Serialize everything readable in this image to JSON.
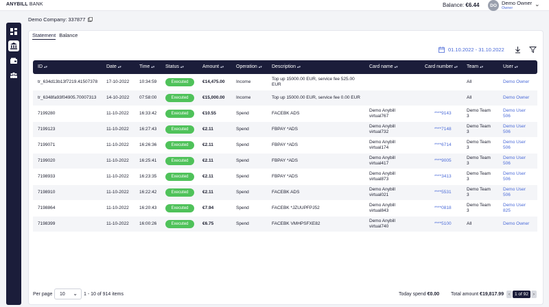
{
  "topbar": {
    "brand_bold": "ANYBILL",
    "brand_light": "BANK",
    "balance_label": "Balance:",
    "balance_value": "€6.44",
    "avatar_initials": "DO",
    "user_name": "Demo Owner",
    "user_role": "Owner"
  },
  "company": {
    "label": "Demo Company: 337877"
  },
  "tabs": [
    {
      "label": "Statement",
      "active": true
    },
    {
      "label": "Balance",
      "active": false
    }
  ],
  "filters": {
    "date_range": "01.10.2022 - 31.10.2022"
  },
  "table": {
    "columns": [
      "ID",
      "Date",
      "Time",
      "Status",
      "Amount",
      "Operation",
      "Description",
      "Card name",
      "Card number",
      "Team",
      "User"
    ],
    "rows": [
      {
        "id": "tr_634d13b13f7219.41507378",
        "date": "17-10-2022",
        "time": "10:34:59",
        "status": "Executed",
        "amount": "€14,475.00",
        "operation": "Income",
        "description": "Top up 15000.00 EUR, service fee 525.00 EUR",
        "card_name": "",
        "card_number": "",
        "team": "All",
        "user": "Demo Owner"
      },
      {
        "id": "tr_6348fa93f04905.70007313",
        "date": "14-10-2022",
        "time": "07:58:00",
        "status": "Executed",
        "amount": "€15,000.00",
        "operation": "Income",
        "description": "Top up 15000.00 EUR, service fee 0.00 EUR",
        "card_name": "",
        "card_number": "",
        "team": "All",
        "user": "Demo Owner"
      },
      {
        "id": "7199280",
        "date": "11-10-2022",
        "time": "16:33:42",
        "status": "Executed",
        "amount": "€10.55",
        "operation": "Spend",
        "description": "FACEBK ADS",
        "card_name": "Demo Anybill virtual767",
        "card_number": "****9143",
        "team": "Demo Team 3",
        "user": "Demo User 506"
      },
      {
        "id": "7199123",
        "date": "11-10-2022",
        "time": "16:27:43",
        "status": "Executed",
        "amount": "€2.11",
        "operation": "Spend",
        "description": "FBPAY *ADS",
        "card_name": "Demo Anybill virtual732",
        "card_number": "****7148",
        "team": "Demo Team 3",
        "user": "Demo User 506"
      },
      {
        "id": "7199071",
        "date": "11-10-2022",
        "time": "16:26:36",
        "status": "Executed",
        "amount": "€2.11",
        "operation": "Spend",
        "description": "FBPAY *ADS",
        "card_name": "Demo Anybill virtual174",
        "card_number": "****6714",
        "team": "Demo Team 3",
        "user": "Demo User 506"
      },
      {
        "id": "7199020",
        "date": "11-10-2022",
        "time": "16:25:41",
        "status": "Executed",
        "amount": "€2.11",
        "operation": "Spend",
        "description": "FBPAY *ADS",
        "card_name": "Demo Anybill virtual417",
        "card_number": "****9005",
        "team": "Demo Team 3",
        "user": "Demo User 506"
      },
      {
        "id": "7198933",
        "date": "11-10-2022",
        "time": "16:23:35",
        "status": "Executed",
        "amount": "€2.11",
        "operation": "Spend",
        "description": "FBPAY *ADS",
        "card_name": "Demo Anybill virtual873",
        "card_number": "****3413",
        "team": "Demo Team 3",
        "user": "Demo User 506"
      },
      {
        "id": "7198910",
        "date": "11-10-2022",
        "time": "16:22:42",
        "status": "Executed",
        "amount": "€2.11",
        "operation": "Spend",
        "description": "FACEBK ADS",
        "card_name": "Demo Anybill virtual021",
        "card_number": "****5531",
        "team": "Demo Team 3",
        "user": "Demo User 506"
      },
      {
        "id": "7198864",
        "date": "11-10-2022",
        "time": "16:20:43",
        "status": "Executed",
        "amount": "€7.94",
        "operation": "Spend",
        "description": "FACEBK *JZUUPFPJ52",
        "card_name": "Demo Anybill virtual843",
        "card_number": "****0818",
        "team": "Demo Team 3",
        "user": "Demo User 825"
      },
      {
        "id": "7198399",
        "date": "11-10-2022",
        "time": "16:00:26",
        "status": "Executed",
        "amount": "€6.75",
        "operation": "Spend",
        "description": "FACEBK VMHPSFXE82",
        "card_name": "Demo Anybill virtual740",
        "card_number": "****5100",
        "team": "All",
        "user": "Demo Owner"
      }
    ]
  },
  "footer": {
    "per_page_label": "Per page",
    "per_page_value": "10",
    "range_info": "1 - 10 of 914 items",
    "today_label": "Today spend",
    "today_value": "€0.00",
    "total_label": "Total amount",
    "total_value": "€19,817.99",
    "page_info": "1 of 92"
  },
  "icons": {
    "sidebar": [
      "dashboard-icon",
      "bank-icon",
      "wallet-icon",
      "team-icon"
    ],
    "toolbar": [
      "calendar-icon",
      "download-icon",
      "filter-icon"
    ]
  },
  "colors": {
    "navy": "#1b1d3a",
    "accent": "#4a6ad8",
    "executed": "#4fc25a"
  }
}
